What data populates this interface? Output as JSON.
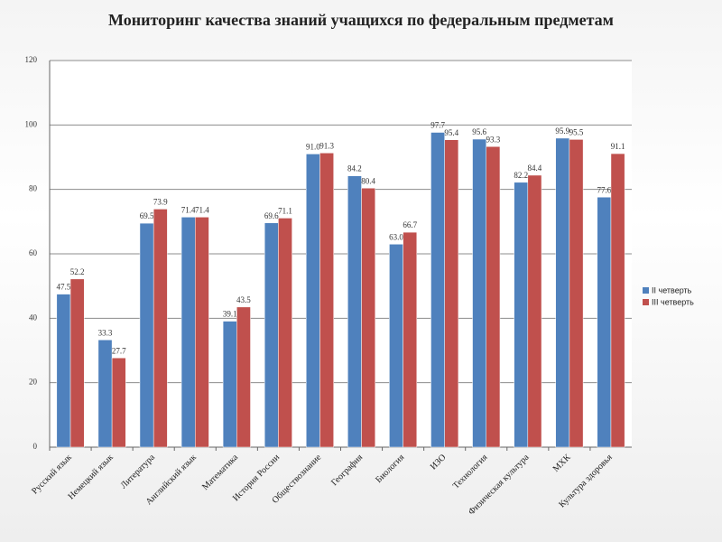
{
  "chart_data": {
    "type": "bar",
    "title": "Мониторинг качества знаний учащихся по  федеральным предметам",
    "categories": [
      "Русский язык",
      "Немецкий язык",
      "Литература",
      "Английский язык",
      "Математика",
      "История  России",
      "Обществознание",
      "География",
      "Биология",
      "ИЗО",
      "Технология",
      "Физическая культура",
      "МХК",
      "Культура здоровья"
    ],
    "series": [
      {
        "name": "II  четверть",
        "color": "#4f81bd",
        "values": [
          47.5,
          33.3,
          69.5,
          71.4,
          39.1,
          69.6,
          91.0,
          84.2,
          63.0,
          97.7,
          95.6,
          82.2,
          95.9,
          77.6
        ],
        "value_labels": [
          "47.5",
          "33.3",
          "69.5",
          "71.4",
          "39.1",
          "69.6",
          "91.0",
          "84.2",
          "63.0",
          "97.7",
          "95.6",
          "82.2",
          "95.9",
          "77.6"
        ]
      },
      {
        "name": "III четверть",
        "color": "#c0504d",
        "values": [
          52.2,
          27.7,
          73.9,
          71.4,
          43.5,
          71.1,
          91.3,
          80.4,
          66.7,
          95.4,
          93.3,
          84.4,
          95.5,
          91.1
        ],
        "value_labels": [
          "52.2",
          "27.7",
          "73.9",
          "71.4",
          "43.5",
          "71.1",
          "91.3",
          "80.4",
          "66.7",
          "95.4",
          "93.3",
          "84.4",
          "95.5",
          "91.1"
        ]
      }
    ],
    "ylim": [
      0,
      120
    ],
    "yticks": [
      0,
      20,
      40,
      60,
      80,
      100,
      120
    ],
    "grid": true,
    "legend": "right"
  }
}
